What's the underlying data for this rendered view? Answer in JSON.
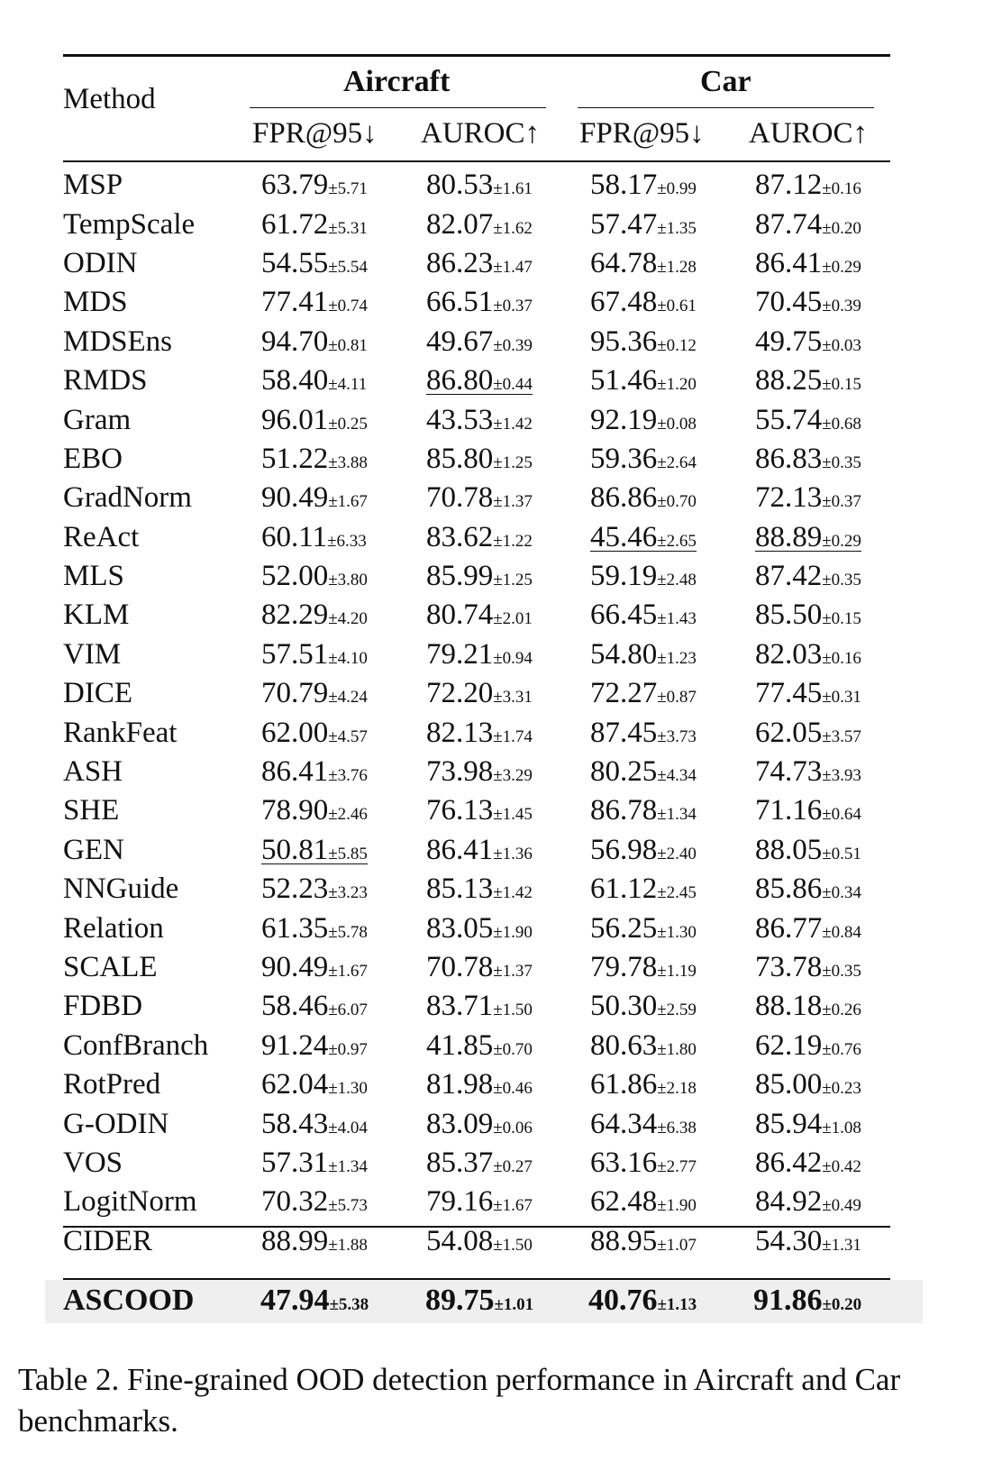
{
  "header": {
    "method": "Method",
    "groups": [
      "Aircraft",
      "Car"
    ],
    "metrics": [
      "FPR@95↓",
      "AUROC↑",
      "FPR@95↓",
      "AUROC↑"
    ]
  },
  "rows": [
    {
      "method": "MSP",
      "vals": [
        [
          "63.79",
          "±5.71"
        ],
        [
          "80.53",
          "±1.61"
        ],
        [
          "58.17",
          "±0.99"
        ],
        [
          "87.12",
          "±0.16"
        ]
      ]
    },
    {
      "method": "TempScale",
      "vals": [
        [
          "61.72",
          "±5.31"
        ],
        [
          "82.07",
          "±1.62"
        ],
        [
          "57.47",
          "±1.35"
        ],
        [
          "87.74",
          "±0.20"
        ]
      ]
    },
    {
      "method": "ODIN",
      "vals": [
        [
          "54.55",
          "±5.54"
        ],
        [
          "86.23",
          "±1.47"
        ],
        [
          "64.78",
          "±1.28"
        ],
        [
          "86.41",
          "±0.29"
        ]
      ]
    },
    {
      "method": "MDS",
      "vals": [
        [
          "77.41",
          "±0.74"
        ],
        [
          "66.51",
          "±0.37"
        ],
        [
          "67.48",
          "±0.61"
        ],
        [
          "70.45",
          "±0.39"
        ]
      ]
    },
    {
      "method": "MDSEns",
      "vals": [
        [
          "94.70",
          "±0.81"
        ],
        [
          "49.67",
          "±0.39"
        ],
        [
          "95.36",
          "±0.12"
        ],
        [
          "49.75",
          "±0.03"
        ]
      ]
    },
    {
      "method": "RMDS",
      "vals": [
        [
          "58.40",
          "±4.11"
        ],
        [
          "86.80",
          "±0.44"
        ],
        [
          "51.46",
          "±1.20"
        ],
        [
          "88.25",
          "±0.15"
        ]
      ],
      "underline": [
        1
      ]
    },
    {
      "method": "Gram",
      "vals": [
        [
          "96.01",
          "±0.25"
        ],
        [
          "43.53",
          "±1.42"
        ],
        [
          "92.19",
          "±0.08"
        ],
        [
          "55.74",
          "±0.68"
        ]
      ]
    },
    {
      "method": "EBO",
      "vals": [
        [
          "51.22",
          "±3.88"
        ],
        [
          "85.80",
          "±1.25"
        ],
        [
          "59.36",
          "±2.64"
        ],
        [
          "86.83",
          "±0.35"
        ]
      ]
    },
    {
      "method": "GradNorm",
      "vals": [
        [
          "90.49",
          "±1.67"
        ],
        [
          "70.78",
          "±1.37"
        ],
        [
          "86.86",
          "±0.70"
        ],
        [
          "72.13",
          "±0.37"
        ]
      ]
    },
    {
      "method": "ReAct",
      "vals": [
        [
          "60.11",
          "±6.33"
        ],
        [
          "83.62",
          "±1.22"
        ],
        [
          "45.46",
          "±2.65"
        ],
        [
          "88.89",
          "±0.29"
        ]
      ],
      "underline": [
        2,
        3
      ]
    },
    {
      "method": "MLS",
      "vals": [
        [
          "52.00",
          "±3.80"
        ],
        [
          "85.99",
          "±1.25"
        ],
        [
          "59.19",
          "±2.48"
        ],
        [
          "87.42",
          "±0.35"
        ]
      ]
    },
    {
      "method": "KLM",
      "vals": [
        [
          "82.29",
          "±4.20"
        ],
        [
          "80.74",
          "±2.01"
        ],
        [
          "66.45",
          "±1.43"
        ],
        [
          "85.50",
          "±0.15"
        ]
      ]
    },
    {
      "method": "VIM",
      "vals": [
        [
          "57.51",
          "±4.10"
        ],
        [
          "79.21",
          "±0.94"
        ],
        [
          "54.80",
          "±1.23"
        ],
        [
          "82.03",
          "±0.16"
        ]
      ]
    },
    {
      "method": "DICE",
      "vals": [
        [
          "70.79",
          "±4.24"
        ],
        [
          "72.20",
          "±3.31"
        ],
        [
          "72.27",
          "±0.87"
        ],
        [
          "77.45",
          "±0.31"
        ]
      ]
    },
    {
      "method": "RankFeat",
      "vals": [
        [
          "62.00",
          "±4.57"
        ],
        [
          "82.13",
          "±1.74"
        ],
        [
          "87.45",
          "±3.73"
        ],
        [
          "62.05",
          "±3.57"
        ]
      ]
    },
    {
      "method": "ASH",
      "vals": [
        [
          "86.41",
          "±3.76"
        ],
        [
          "73.98",
          "±3.29"
        ],
        [
          "80.25",
          "±4.34"
        ],
        [
          "74.73",
          "±3.93"
        ]
      ]
    },
    {
      "method": "SHE",
      "vals": [
        [
          "78.90",
          "±2.46"
        ],
        [
          "76.13",
          "±1.45"
        ],
        [
          "86.78",
          "±1.34"
        ],
        [
          "71.16",
          "±0.64"
        ]
      ]
    },
    {
      "method": "GEN",
      "vals": [
        [
          "50.81",
          "±5.85"
        ],
        [
          "86.41",
          "±1.36"
        ],
        [
          "56.98",
          "±2.40"
        ],
        [
          "88.05",
          "±0.51"
        ]
      ],
      "underline": [
        0
      ]
    },
    {
      "method": "NNGuide",
      "vals": [
        [
          "52.23",
          "±3.23"
        ],
        [
          "85.13",
          "±1.42"
        ],
        [
          "61.12",
          "±2.45"
        ],
        [
          "85.86",
          "±0.34"
        ]
      ]
    },
    {
      "method": "Relation",
      "vals": [
        [
          "61.35",
          "±5.78"
        ],
        [
          "83.05",
          "±1.90"
        ],
        [
          "56.25",
          "±1.30"
        ],
        [
          "86.77",
          "±0.84"
        ]
      ]
    },
    {
      "method": "SCALE",
      "vals": [
        [
          "90.49",
          "±1.67"
        ],
        [
          "70.78",
          "±1.37"
        ],
        [
          "79.78",
          "±1.19"
        ],
        [
          "73.78",
          "±0.35"
        ]
      ]
    },
    {
      "method": "FDBD",
      "vals": [
        [
          "58.46",
          "±6.07"
        ],
        [
          "83.71",
          "±1.50"
        ],
        [
          "50.30",
          "±2.59"
        ],
        [
          "88.18",
          "±0.26"
        ]
      ]
    },
    {
      "method": "ConfBranch",
      "vals": [
        [
          "91.24",
          "±0.97"
        ],
        [
          "41.85",
          "±0.70"
        ],
        [
          "80.63",
          "±1.80"
        ],
        [
          "62.19",
          "±0.76"
        ]
      ]
    },
    {
      "method": "RotPred",
      "vals": [
        [
          "62.04",
          "±1.30"
        ],
        [
          "81.98",
          "±0.46"
        ],
        [
          "61.86",
          "±2.18"
        ],
        [
          "85.00",
          "±0.23"
        ]
      ]
    },
    {
      "method": "G-ODIN",
      "vals": [
        [
          "58.43",
          "±4.04"
        ],
        [
          "83.09",
          "±0.06"
        ],
        [
          "64.34",
          "±6.38"
        ],
        [
          "85.94",
          "±1.08"
        ]
      ]
    },
    {
      "method": "VOS",
      "vals": [
        [
          "57.31",
          "±1.34"
        ],
        [
          "85.37",
          "±0.27"
        ],
        [
          "63.16",
          "±2.77"
        ],
        [
          "86.42",
          "±0.42"
        ]
      ]
    },
    {
      "method": "LogitNorm",
      "vals": [
        [
          "70.32",
          "±5.73"
        ],
        [
          "79.16",
          "±1.67"
        ],
        [
          "62.48",
          "±1.90"
        ],
        [
          "84.92",
          "±0.49"
        ]
      ]
    },
    {
      "method": "CIDER",
      "vals": [
        [
          "88.99",
          "±1.88"
        ],
        [
          "54.08",
          "±1.50"
        ],
        [
          "88.95",
          "±1.07"
        ],
        [
          "54.30",
          "±1.31"
        ]
      ]
    }
  ],
  "best": {
    "method": "ASCOOD",
    "vals": [
      [
        "47.94",
        "±5.38"
      ],
      [
        "89.75",
        "±1.01"
      ],
      [
        "40.76",
        "±1.13"
      ],
      [
        "91.86",
        "±0.20"
      ]
    ]
  },
  "caption": "Table 2. Fine-grained OOD detection performance in Aircraft and Car benchmarks."
}
